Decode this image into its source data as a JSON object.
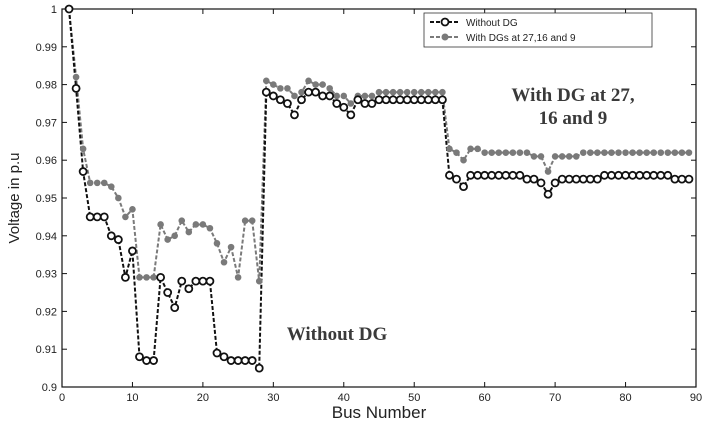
{
  "chart_data": {
    "type": "line",
    "xlabel": "Bus Number",
    "ylabel": "Voltage in p.u",
    "xlim": [
      0,
      90
    ],
    "ylim": [
      0.9,
      1.0
    ],
    "x_ticks": [
      "0",
      "10",
      "20",
      "30",
      "40",
      "50",
      "60",
      "70",
      "80",
      "90"
    ],
    "y_ticks": [
      "0.9",
      "0.91",
      "0.92",
      "0.93",
      "0.94",
      "0.95",
      "0.96",
      "0.97",
      "0.98",
      "0.99",
      "1"
    ],
    "grid": false,
    "legend_position": "top-right",
    "x": [
      1,
      2,
      3,
      4,
      5,
      6,
      7,
      8,
      9,
      10,
      11,
      12,
      13,
      14,
      15,
      16,
      17,
      18,
      19,
      20,
      21,
      22,
      23,
      24,
      25,
      26,
      27,
      28,
      29,
      30,
      31,
      32,
      33,
      34,
      35,
      36,
      37,
      38,
      39,
      40,
      41,
      42,
      43,
      44,
      45,
      46,
      47,
      48,
      49,
      50,
      51,
      52,
      53,
      54,
      55,
      56,
      57,
      58,
      59,
      60,
      61,
      62,
      63,
      64,
      65,
      66,
      67,
      68,
      69,
      70,
      71,
      72,
      73,
      74,
      75,
      76,
      77,
      78,
      79,
      80,
      81,
      82,
      83,
      84,
      85,
      86,
      87,
      88,
      89
    ],
    "series": [
      {
        "name": "Without DG",
        "color": "#111111",
        "marker": "open-circle",
        "values": [
          1.0,
          0.979,
          0.957,
          0.945,
          0.945,
          0.945,
          0.94,
          0.939,
          0.929,
          0.936,
          0.908,
          0.907,
          0.907,
          0.929,
          0.925,
          0.921,
          0.928,
          0.926,
          0.928,
          0.928,
          0.928,
          0.909,
          0.908,
          0.907,
          0.907,
          0.907,
          0.907,
          0.905,
          0.978,
          0.977,
          0.976,
          0.975,
          0.972,
          0.976,
          0.978,
          0.978,
          0.977,
          0.977,
          0.975,
          0.974,
          0.972,
          0.976,
          0.975,
          0.975,
          0.976,
          0.976,
          0.976,
          0.976,
          0.976,
          0.976,
          0.976,
          0.976,
          0.976,
          0.976,
          0.956,
          0.955,
          0.953,
          0.956,
          0.956,
          0.956,
          0.956,
          0.956,
          0.956,
          0.956,
          0.956,
          0.955,
          0.955,
          0.954,
          0.951,
          0.954,
          0.955,
          0.955,
          0.955,
          0.955,
          0.955,
          0.955,
          0.956,
          0.956,
          0.956,
          0.956,
          0.956,
          0.956,
          0.956,
          0.956,
          0.956,
          0.956,
          0.955,
          0.955,
          0.955
        ]
      },
      {
        "name": "With DGs at 27,16 and 9",
        "color": "#7a7a7a",
        "marker": "filled-circle",
        "values": [
          1.0,
          0.982,
          0.963,
          0.954,
          0.954,
          0.954,
          0.953,
          0.95,
          0.945,
          0.947,
          0.929,
          0.929,
          0.929,
          0.943,
          0.939,
          0.94,
          0.944,
          0.941,
          0.943,
          0.943,
          0.942,
          0.938,
          0.933,
          0.937,
          0.929,
          0.944,
          0.944,
          0.928,
          0.981,
          0.98,
          0.979,
          0.979,
          0.977,
          0.978,
          0.981,
          0.98,
          0.98,
          0.979,
          0.977,
          0.977,
          0.975,
          0.977,
          0.977,
          0.977,
          0.978,
          0.978,
          0.978,
          0.978,
          0.978,
          0.978,
          0.978,
          0.978,
          0.978,
          0.978,
          0.963,
          0.962,
          0.96,
          0.963,
          0.963,
          0.962,
          0.962,
          0.962,
          0.962,
          0.962,
          0.962,
          0.962,
          0.961,
          0.961,
          0.957,
          0.961,
          0.961,
          0.961,
          0.961,
          0.962,
          0.962,
          0.962,
          0.962,
          0.962,
          0.962,
          0.962,
          0.962,
          0.962,
          0.962,
          0.962,
          0.962,
          0.962,
          0.962,
          0.962,
          0.962
        ]
      }
    ],
    "annotations": [
      {
        "lines": [
          "With DG at 27,",
          "16 and 9"
        ],
        "x": 65,
        "y": 0.975
      },
      {
        "lines": [
          "Without DG"
        ],
        "x": 38,
        "y": 0.913
      }
    ]
  }
}
